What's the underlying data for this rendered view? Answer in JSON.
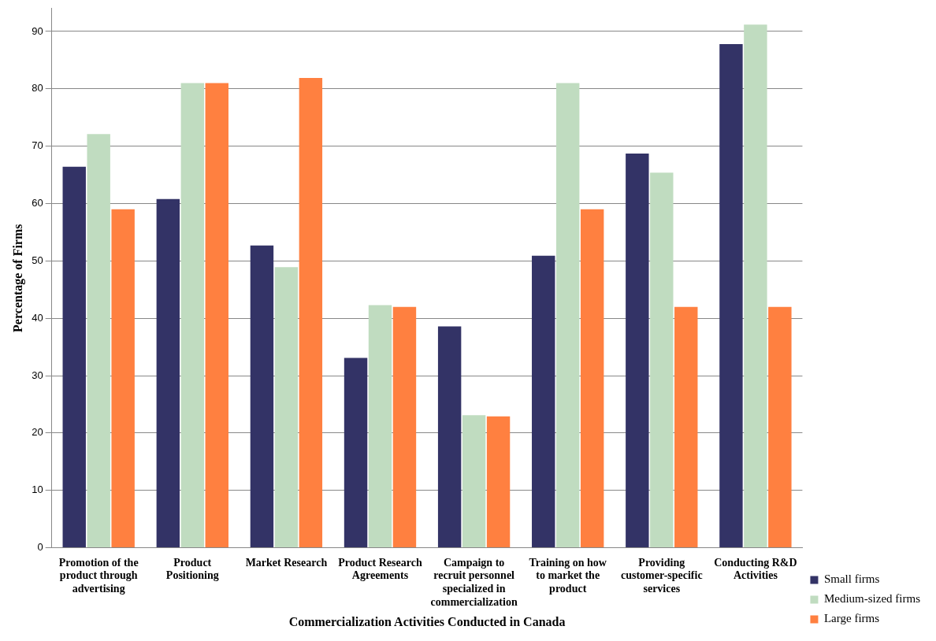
{
  "chart_data": {
    "type": "bar",
    "xlabel": "Commercialization Activities Conducted in Canada",
    "ylabel": "Percentage of Firms",
    "categories": [
      "Promotion of the product through advertising",
      "Product Positioning",
      "Market Research",
      "Product Research Agreements",
      "Campaign to recruit personnel specialized in commercialization",
      "Training on how to market the product",
      "Providing customer-specific services",
      "Conducting R&D Activities"
    ],
    "series": [
      {
        "name": "Small firms",
        "color": "#333366",
        "values": [
          66.4,
          60.8,
          52.7,
          33.1,
          38.6,
          50.9,
          68.7,
          87.8
        ]
      },
      {
        "name": "Medium-sized firms",
        "color": "#c0dcc0",
        "values": [
          72.1,
          81,
          48.9,
          42.3,
          23.1,
          81,
          65.4,
          91.2
        ]
      },
      {
        "name": "Large firms",
        "color": "#ff8040",
        "values": [
          59,
          81,
          81.9,
          42,
          22.9,
          59,
          42,
          42
        ]
      }
    ],
    "ylim": [
      0,
      94
    ],
    "yticks": [
      0,
      10,
      20,
      30,
      40,
      50,
      60,
      70,
      80,
      90
    ],
    "grid": "y",
    "legend": "bottom right"
  }
}
